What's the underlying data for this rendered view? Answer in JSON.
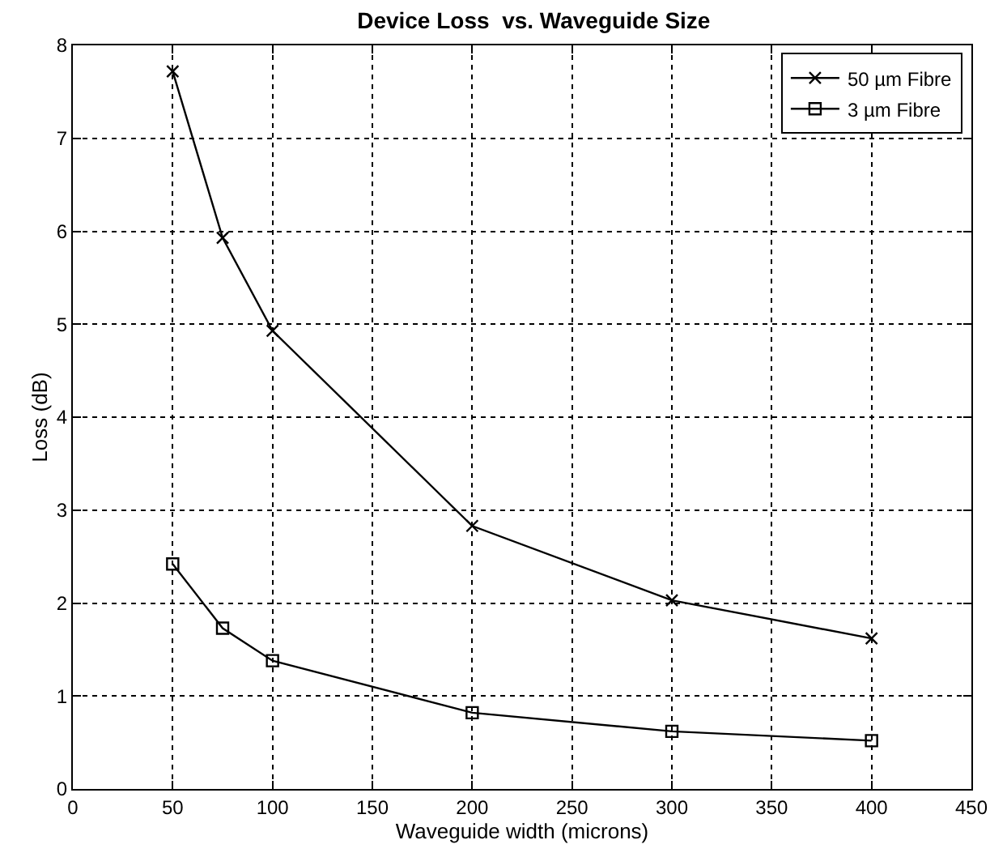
{
  "chart_data": {
    "type": "line",
    "title": "Device Loss  vs. Waveguide Size",
    "xlabel": "Waveguide width (microns)",
    "ylabel": "Loss (dB)",
    "x": [
      50,
      75,
      100,
      200,
      300,
      400
    ],
    "series": [
      {
        "name": "50 µm Fibre",
        "color": "#000000",
        "marker": "cross",
        "values": [
          7.72,
          5.93,
          4.93,
          2.83,
          2.03,
          1.62
        ]
      },
      {
        "name": "3 µm Fibre",
        "color": "#000000",
        "marker": "square",
        "values": [
          2.42,
          1.73,
          1.38,
          0.82,
          0.62,
          0.52
        ]
      }
    ],
    "xlim": [
      0,
      450
    ],
    "xticks": [
      0,
      50,
      100,
      150,
      200,
      250,
      300,
      350,
      400,
      450
    ],
    "ylim": [
      0,
      8
    ],
    "yticks": [
      0,
      1,
      2,
      3,
      4,
      5,
      6,
      7,
      8
    ],
    "grid": true,
    "legend": "top right",
    "line_style": "solid"
  }
}
